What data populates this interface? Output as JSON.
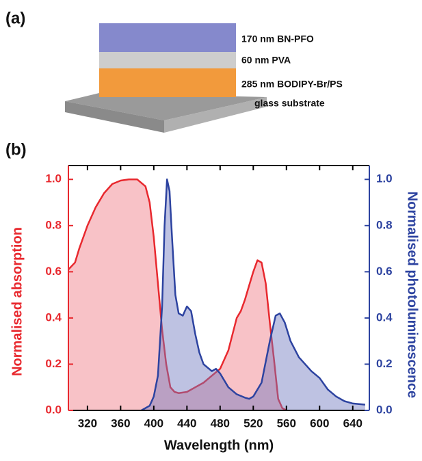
{
  "panel_a": {
    "label": "(a)",
    "layers": [
      "170 nm BN-PFO",
      "60 nm PVA",
      "285 nm BODIPY-Br/PS",
      "glass substrate"
    ]
  },
  "panel_b": {
    "label": "(b)"
  },
  "chart_data": {
    "type": "area",
    "xlabel": "Wavelength (nm)",
    "ylabel": "Normalised absorption",
    "y2label": "Normalised photoluminescence",
    "xlim": [
      297,
      660
    ],
    "ylim": [
      0,
      1.06
    ],
    "y2lim": [
      0,
      1.06
    ],
    "xticks": [
      320,
      360,
      400,
      440,
      480,
      520,
      560,
      600,
      640
    ],
    "yticks": [
      {
        "value": 0,
        "label": "0.0"
      },
      0.2,
      0.4,
      0.6,
      0.8,
      {
        "value": 1,
        "label": "1.0"
      }
    ],
    "y2ticks": [
      {
        "value": 0,
        "label": "0.0"
      },
      0.2,
      0.4,
      0.6,
      0.8,
      {
        "value": 1,
        "label": "1.0"
      }
    ],
    "series": [
      {
        "name": "absorption",
        "color": "#e8282e",
        "fill": "rgba(240,120,130,0.45)",
        "axis": "y",
        "x": [
          297,
          305,
          310,
          320,
          330,
          340,
          350,
          360,
          370,
          380,
          390,
          395,
          400,
          405,
          410,
          415,
          420,
          425,
          430,
          440,
          450,
          460,
          470,
          480,
          490,
          495,
          500,
          505,
          510,
          515,
          520,
          525,
          530,
          535,
          540,
          545,
          550,
          555,
          560
        ],
        "values": [
          0.61,
          0.64,
          0.7,
          0.8,
          0.88,
          0.94,
          0.98,
          0.995,
          1.0,
          1.0,
          0.97,
          0.9,
          0.75,
          0.55,
          0.35,
          0.2,
          0.1,
          0.08,
          0.075,
          0.08,
          0.1,
          0.12,
          0.15,
          0.18,
          0.26,
          0.33,
          0.4,
          0.43,
          0.48,
          0.54,
          0.6,
          0.65,
          0.64,
          0.55,
          0.38,
          0.22,
          0.05,
          0.01,
          0
        ]
      },
      {
        "name": "photoluminescence",
        "color": "#2d43a0",
        "fill": "rgba(110,120,190,0.45)",
        "axis": "y2",
        "x": [
          385,
          395,
          400,
          405,
          410,
          413,
          416,
          419,
          422,
          426,
          430,
          435,
          440,
          445,
          450,
          455,
          460,
          470,
          475,
          480,
          490,
          500,
          510,
          515,
          520,
          530,
          540,
          547,
          552,
          558,
          565,
          575,
          590,
          600,
          610,
          620,
          630,
          640,
          655
        ],
        "values": [
          0,
          0.02,
          0.06,
          0.15,
          0.45,
          0.8,
          1.0,
          0.95,
          0.75,
          0.5,
          0.42,
          0.41,
          0.45,
          0.43,
          0.33,
          0.25,
          0.2,
          0.17,
          0.18,
          0.16,
          0.1,
          0.07,
          0.055,
          0.05,
          0.06,
          0.12,
          0.3,
          0.41,
          0.42,
          0.38,
          0.3,
          0.23,
          0.17,
          0.14,
          0.09,
          0.06,
          0.04,
          0.03,
          0.025
        ]
      }
    ]
  }
}
